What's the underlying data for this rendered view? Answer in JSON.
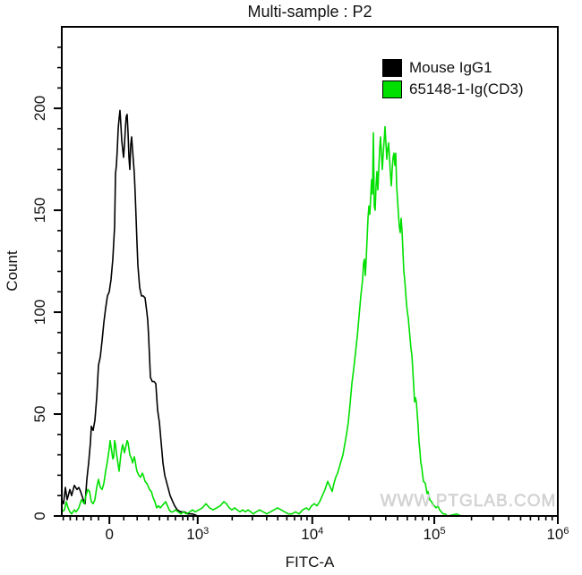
{
  "watermark": {
    "text": "WWW.PTGLAB.COM",
    "color": "#d8d8d8"
  },
  "legend": {
    "entries": [
      {
        "label": "Mouse IgG1",
        "color": "#000000"
      },
      {
        "label": "65148-1-Ig(CD3)",
        "color": "#00e000"
      }
    ]
  },
  "chart_data": {
    "type": "line",
    "subtype": "flow-cytometry-histogram",
    "title": "Multi-sample : P2",
    "xlabel": "FITC-A",
    "ylabel": "Count",
    "grid": false,
    "legend_position": "top-right-inside",
    "x_axis": {
      "scale": "biexponential-logicle",
      "range_note": "axis spans approx -380 to 1e6; frac = fraction of axis width from left edge",
      "major_ticks": [
        {
          "text": "0",
          "frac": 0.096
        },
        {
          "base": "10",
          "exp": "3",
          "frac": 0.274
        },
        {
          "base": "10",
          "exp": "4",
          "frac": 0.505
        },
        {
          "base": "10",
          "exp": "5",
          "frac": 0.751
        },
        {
          "base": "10",
          "exp": "6",
          "frac": 1.0
        }
      ],
      "minor_tick_fracs_negative": [
        0.003,
        0.017,
        0.03,
        0.044,
        0.059,
        0.074
      ],
      "minor_tick_fracs_linear": [
        0.125,
        0.152,
        0.175,
        0.197,
        0.214,
        0.229,
        0.244,
        0.254,
        0.265
      ]
    },
    "y_axis": {
      "min": 0,
      "max": 240,
      "major_step": 50,
      "minor_step": 10,
      "major_ticks": [
        0,
        50,
        100,
        150,
        200
      ]
    },
    "points_format": "[x_offset_px_across_554px_axis_(biexponential_FITC-A), count]",
    "series": [
      {
        "id": "mouse-igg1",
        "name": "Mouse IgG1",
        "color": "#000000",
        "peak_count": 199,
        "points": [
          [
            0,
            8
          ],
          [
            2,
            6
          ],
          [
            4,
            14
          ],
          [
            6,
            8
          ],
          [
            9,
            13
          ],
          [
            11,
            10
          ],
          [
            14,
            15
          ],
          [
            17,
            13
          ],
          [
            19,
            14
          ],
          [
            21,
            12
          ],
          [
            24,
            8
          ],
          [
            26,
            6
          ],
          [
            28,
            18
          ],
          [
            30,
            26
          ],
          [
            32,
            36
          ],
          [
            33,
            44
          ],
          [
            35,
            42
          ],
          [
            37,
            47
          ],
          [
            39,
            58
          ],
          [
            41,
            74
          ],
          [
            43,
            78
          ],
          [
            45,
            86
          ],
          [
            47,
            95
          ],
          [
            49,
            102
          ],
          [
            51,
            108
          ],
          [
            53,
            110
          ],
          [
            55,
            116
          ],
          [
            57,
            126
          ],
          [
            59,
            142
          ],
          [
            60,
            168
          ],
          [
            61,
            172
          ],
          [
            62,
            180
          ],
          [
            63,
            190
          ],
          [
            64,
            195
          ],
          [
            65,
            199
          ],
          [
            66,
            192
          ],
          [
            67,
            184
          ],
          [
            69,
            176
          ],
          [
            70,
            182
          ],
          [
            71,
            190
          ],
          [
            72,
            196
          ],
          [
            73,
            197
          ],
          [
            74,
            188
          ],
          [
            75,
            176
          ],
          [
            76,
            170
          ],
          [
            77,
            182
          ],
          [
            78,
            186
          ],
          [
            79,
            180
          ],
          [
            80,
            174
          ],
          [
            81,
            168
          ],
          [
            82,
            158
          ],
          [
            83,
            146
          ],
          [
            84,
            134
          ],
          [
            85,
            123
          ],
          [
            87,
            112
          ],
          [
            89,
            108
          ],
          [
            91,
            108
          ],
          [
            93,
            107
          ],
          [
            95,
            100
          ],
          [
            96,
            96
          ],
          [
            97,
            88
          ],
          [
            98,
            78
          ],
          [
            99,
            68
          ],
          [
            101,
            66
          ],
          [
            103,
            66
          ],
          [
            105,
            65
          ],
          [
            107,
            52
          ],
          [
            109,
            46
          ],
          [
            111,
            36
          ],
          [
            113,
            26
          ],
          [
            115,
            20
          ],
          [
            118,
            15
          ],
          [
            121,
            10
          ],
          [
            123,
            8
          ],
          [
            126,
            5
          ],
          [
            129,
            3
          ],
          [
            133,
            2
          ],
          [
            137,
            2
          ],
          [
            141,
            1
          ],
          [
            146,
            1
          ],
          [
            152,
            0
          ],
          [
            161,
            0
          ]
        ]
      },
      {
        "id": "cd3",
        "name": "65148-1-Ig(CD3)",
        "color": "#00e000",
        "peak_count": 191,
        "points": [
          [
            0,
            2
          ],
          [
            3,
            3
          ],
          [
            5,
            7
          ],
          [
            7,
            4
          ],
          [
            9,
            2
          ],
          [
            11,
            1
          ],
          [
            14,
            3
          ],
          [
            16,
            2
          ],
          [
            19,
            4
          ],
          [
            22,
            8
          ],
          [
            25,
            6
          ],
          [
            27,
            10
          ],
          [
            29,
            13
          ],
          [
            31,
            12
          ],
          [
            33,
            7
          ],
          [
            35,
            6
          ],
          [
            37,
            8
          ],
          [
            39,
            14
          ],
          [
            41,
            18
          ],
          [
            43,
            14
          ],
          [
            45,
            13
          ],
          [
            47,
            16
          ],
          [
            49,
            22
          ],
          [
            51,
            27
          ],
          [
            53,
            33
          ],
          [
            54,
            37
          ],
          [
            55,
            34
          ],
          [
            56,
            31
          ],
          [
            57,
            28
          ],
          [
            58,
            29
          ],
          [
            59,
            37
          ],
          [
            60,
            35
          ],
          [
            61,
            31
          ],
          [
            62,
            28
          ],
          [
            63,
            25
          ],
          [
            64,
            22
          ],
          [
            65,
            26
          ],
          [
            66,
            30
          ],
          [
            67,
            33
          ],
          [
            68,
            35
          ],
          [
            69,
            33
          ],
          [
            70,
            31
          ],
          [
            71,
            33
          ],
          [
            72,
            35
          ],
          [
            73,
            37
          ],
          [
            74,
            36
          ],
          [
            75,
            33
          ],
          [
            76,
            30
          ],
          [
            78,
            28
          ],
          [
            79,
            26
          ],
          [
            81,
            29
          ],
          [
            82,
            27
          ],
          [
            83,
            24
          ],
          [
            84,
            22
          ],
          [
            86,
            20
          ],
          [
            88,
            19
          ],
          [
            90,
            21
          ],
          [
            91,
            20
          ],
          [
            93,
            17
          ],
          [
            95,
            16
          ],
          [
            96,
            15
          ],
          [
            98,
            13
          ],
          [
            100,
            12
          ],
          [
            102,
            9
          ],
          [
            104,
            7
          ],
          [
            106,
            4
          ],
          [
            108,
            5
          ],
          [
            110,
            4
          ],
          [
            112,
            5
          ],
          [
            114,
            6
          ],
          [
            116,
            7
          ],
          [
            118,
            5
          ],
          [
            120,
            3
          ],
          [
            122,
            2
          ],
          [
            124,
            2
          ],
          [
            127,
            3
          ],
          [
            130,
            2
          ],
          [
            133,
            1
          ],
          [
            136,
            2
          ],
          [
            139,
            1
          ],
          [
            143,
            2
          ],
          [
            146,
            3
          ],
          [
            149,
            2
          ],
          [
            153,
            3
          ],
          [
            157,
            4
          ],
          [
            161,
            6
          ],
          [
            165,
            4
          ],
          [
            169,
            3
          ],
          [
            173,
            4
          ],
          [
            177,
            5
          ],
          [
            181,
            7
          ],
          [
            184,
            6
          ],
          [
            187,
            4
          ],
          [
            190,
            3
          ],
          [
            193,
            4
          ],
          [
            196,
            3
          ],
          [
            199,
            2
          ],
          [
            202,
            3
          ],
          [
            205,
            2
          ],
          [
            208,
            3
          ],
          [
            211,
            2
          ],
          [
            214,
            1
          ],
          [
            217,
            2
          ],
          [
            221,
            3
          ],
          [
            225,
            2
          ],
          [
            229,
            1
          ],
          [
            233,
            2
          ],
          [
            237,
            3
          ],
          [
            241,
            4
          ],
          [
            245,
            3
          ],
          [
            249,
            2
          ],
          [
            253,
            1
          ],
          [
            257,
            1
          ],
          [
            261,
            2
          ],
          [
            265,
            1
          ],
          [
            269,
            3
          ],
          [
            273,
            4
          ],
          [
            276,
            3
          ],
          [
            279,
            5
          ],
          [
            282,
            6
          ],
          [
            285,
            5
          ],
          [
            288,
            7
          ],
          [
            291,
            10
          ],
          [
            294,
            13
          ],
          [
            297,
            17
          ],
          [
            300,
            14
          ],
          [
            302,
            12
          ],
          [
            304,
            16
          ],
          [
            306,
            19
          ],
          [
            308,
            21
          ],
          [
            310,
            24
          ],
          [
            312,
            27
          ],
          [
            314,
            30
          ],
          [
            316,
            35
          ],
          [
            318,
            40
          ],
          [
            320,
            46
          ],
          [
            322,
            55
          ],
          [
            324,
            65
          ],
          [
            326,
            72
          ],
          [
            328,
            80
          ],
          [
            330,
            88
          ],
          [
            332,
            98
          ],
          [
            334,
            108
          ],
          [
            336,
            116
          ],
          [
            337,
            124
          ],
          [
            338,
            126
          ],
          [
            339,
            118
          ],
          [
            340,
            126
          ],
          [
            341,
            136
          ],
          [
            342,
            146
          ],
          [
            343,
            152
          ],
          [
            344,
            148
          ],
          [
            345,
            156
          ],
          [
            346,
            165
          ],
          [
            347,
            158
          ],
          [
            348,
            188
          ],
          [
            349,
            152
          ],
          [
            350,
            150
          ],
          [
            351,
            162
          ],
          [
            352,
            169
          ],
          [
            353,
            160
          ],
          [
            354,
            170
          ],
          [
            355,
            180
          ],
          [
            356,
            186
          ],
          [
            357,
            178
          ],
          [
            358,
            170
          ],
          [
            359,
            178
          ],
          [
            360,
            184
          ],
          [
            361,
            191
          ],
          [
            362,
            183
          ],
          [
            363,
            175
          ],
          [
            364,
            180
          ],
          [
            365,
            183
          ],
          [
            366,
            176
          ],
          [
            367,
            168
          ],
          [
            368,
            162
          ],
          [
            369,
            170
          ],
          [
            370,
            176
          ],
          [
            371,
            178
          ],
          [
            372,
            172
          ],
          [
            373,
            178
          ],
          [
            374,
            162
          ],
          [
            375,
            155
          ],
          [
            376,
            148
          ],
          [
            377,
            142
          ],
          [
            378,
            139
          ],
          [
            379,
            146
          ],
          [
            380,
            140
          ],
          [
            381,
            130
          ],
          [
            382,
            120
          ],
          [
            383,
            116
          ],
          [
            384,
            110
          ],
          [
            385,
            104
          ],
          [
            386,
            100
          ],
          [
            387,
            97
          ],
          [
            388,
            92
          ],
          [
            389,
            87
          ],
          [
            390,
            82
          ],
          [
            391,
            79
          ],
          [
            392,
            72
          ],
          [
            393,
            64
          ],
          [
            394,
            56
          ],
          [
            395,
            58
          ],
          [
            396,
            56
          ],
          [
            397,
            50
          ],
          [
            398,
            44
          ],
          [
            399,
            36
          ],
          [
            400,
            32
          ],
          [
            401,
            26
          ],
          [
            402,
            24
          ],
          [
            403,
            20
          ],
          [
            404,
            17
          ],
          [
            406,
            16
          ],
          [
            408,
            11
          ],
          [
            409,
            12
          ],
          [
            411,
            8
          ],
          [
            413,
            7
          ],
          [
            414,
            6
          ],
          [
            416,
            5
          ],
          [
            418,
            4
          ],
          [
            420,
            5
          ],
          [
            422,
            3
          ],
          [
            424,
            2
          ],
          [
            426,
            1
          ],
          [
            428,
            1
          ],
          [
            431,
            0
          ],
          [
            441,
            1
          ],
          [
            446,
            0
          ],
          [
            554,
            0
          ]
        ]
      }
    ]
  }
}
